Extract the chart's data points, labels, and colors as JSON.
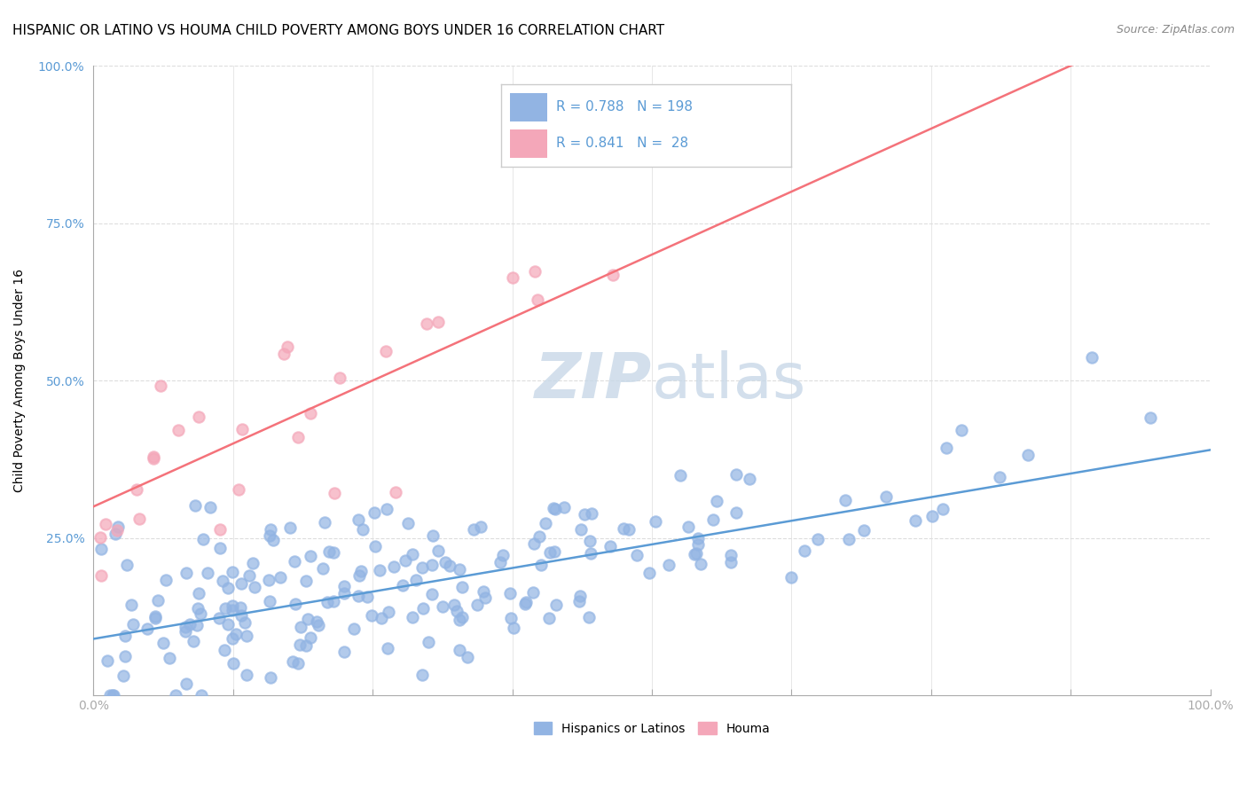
{
  "title": "HISPANIC OR LATINO VS HOUMA CHILD POVERTY AMONG BOYS UNDER 16 CORRELATION CHART",
  "source": "Source: ZipAtlas.com",
  "xlabel": "",
  "ylabel": "Child Poverty Among Boys Under 16",
  "xlim": [
    0,
    1.0
  ],
  "ylim": [
    0,
    1.0
  ],
  "blue_color": "#92b4e3",
  "pink_color": "#f4a7b9",
  "blue_line_color": "#5b9bd5",
  "pink_line_color": "#f4727a",
  "r_blue": 0.788,
  "n_blue": 198,
  "r_pink": 0.841,
  "n_pink": 28,
  "watermark_zip": "ZIP",
  "watermark_atlas": "atlas",
  "watermark_color": "#c8d8e8",
  "title_fontsize": 11,
  "axis_label_fontsize": 10,
  "tick_fontsize": 10,
  "legend_label_blue": "Hispanics or Latinos",
  "legend_label_pink": "Houma",
  "blue_intercept": 0.09,
  "blue_slope": 0.3,
  "pink_intercept": 0.3,
  "pink_slope": 0.8
}
